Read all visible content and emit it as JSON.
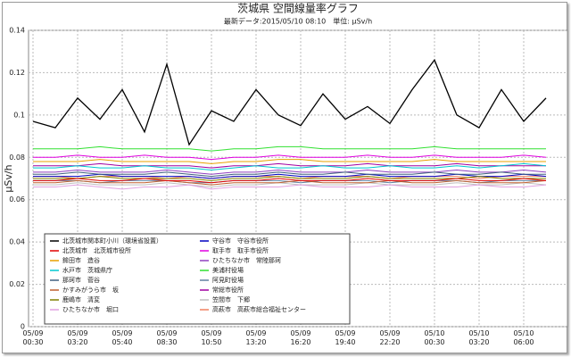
{
  "chart_data": {
    "type": "line",
    "title": "茨城県 空間線量率グラフ",
    "subtitle": "最新データ:2015/05/10 08:10　単位: μSv/h",
    "y_label": "μSv/h",
    "ylim": [
      0,
      0.14
    ],
    "yticks": [
      0,
      0.02,
      0.04,
      0.06,
      0.08,
      0.1,
      0.12,
      0.14
    ],
    "grid": true,
    "categories": [
      "05/09\n00:30",
      null,
      "05/09\n03:20",
      null,
      "05/09\n05:40",
      null,
      "05/09\n08:30",
      null,
      "05/09\n10:50",
      null,
      "05/09\n13:20",
      null,
      "05/09\n16:20",
      null,
      "05/09\n19:40",
      null,
      "05/09\n22:20",
      null,
      "05/10\n00:30",
      null,
      "05/10\n03:20",
      null,
      "05/10\n06:00",
      null
    ],
    "series": [
      {
        "name": "北茨城市関本町小川（環境省設置）",
        "color": "#000000",
        "values": [
          0.097,
          0.094,
          0.108,
          0.098,
          0.112,
          0.092,
          0.124,
          0.086,
          0.102,
          0.097,
          0.112,
          0.1,
          0.095,
          0.11,
          0.098,
          0.104,
          0.096,
          0.112,
          0.126,
          0.1,
          0.094,
          0.112,
          0.097,
          0.108
        ]
      },
      {
        "name": "北茨城市　北茨城市役所",
        "color": "#e00000",
        "values": [
          0.069,
          0.069,
          0.07,
          0.069,
          0.069,
          0.07,
          0.069,
          0.069,
          0.068,
          0.069,
          0.069,
          0.07,
          0.069,
          0.069,
          0.069,
          0.07,
          0.069,
          0.069,
          0.069,
          0.07,
          0.069,
          0.069,
          0.07,
          0.069
        ]
      },
      {
        "name": "鉾田市　造谷",
        "color": "#e8a000",
        "values": [
          0.078,
          0.078,
          0.078,
          0.079,
          0.078,
          0.078,
          0.078,
          0.078,
          0.077,
          0.078,
          0.078,
          0.079,
          0.079,
          0.078,
          0.078,
          0.078,
          0.078,
          0.078,
          0.079,
          0.078,
          0.078,
          0.078,
          0.078,
          0.078
        ]
      },
      {
        "name": "水戸市　茨城県庁",
        "color": "#00c8d0",
        "values": [
          0.075,
          0.075,
          0.076,
          0.075,
          0.075,
          0.076,
          0.075,
          0.075,
          0.074,
          0.075,
          0.076,
          0.075,
          0.075,
          0.076,
          0.075,
          0.075,
          0.076,
          0.075,
          0.075,
          0.076,
          0.075,
          0.076,
          0.077,
          0.076
        ]
      },
      {
        "name": "那珂市　菅谷",
        "color": "#406080",
        "values": [
          0.072,
          0.072,
          0.073,
          0.072,
          0.072,
          0.072,
          0.073,
          0.072,
          0.071,
          0.072,
          0.072,
          0.073,
          0.072,
          0.072,
          0.073,
          0.072,
          0.072,
          0.072,
          0.073,
          0.072,
          0.072,
          0.073,
          0.072,
          0.072
        ]
      },
      {
        "name": "かすみがうら市　坂",
        "color": "#c06030",
        "values": [
          0.068,
          0.068,
          0.069,
          0.068,
          0.068,
          0.068,
          0.069,
          0.068,
          0.067,
          0.068,
          0.068,
          0.068,
          0.069,
          0.068,
          0.068,
          0.068,
          0.069,
          0.068,
          0.068,
          0.069,
          0.068,
          0.068,
          0.068,
          0.069
        ]
      },
      {
        "name": "鹿嶋市　清変",
        "color": "#808000",
        "values": [
          0.07,
          0.07,
          0.07,
          0.071,
          0.07,
          0.07,
          0.07,
          0.07,
          0.069,
          0.07,
          0.07,
          0.071,
          0.07,
          0.07,
          0.07,
          0.071,
          0.07,
          0.07,
          0.07,
          0.07,
          0.071,
          0.07,
          0.07,
          0.07
        ]
      },
      {
        "name": "ひたちなか市　堀口",
        "color": "#e0a0e0",
        "values": [
          0.066,
          0.066,
          0.067,
          0.066,
          0.065,
          0.066,
          0.066,
          0.067,
          0.065,
          0.066,
          0.066,
          0.066,
          0.067,
          0.066,
          0.066,
          0.066,
          0.067,
          0.066,
          0.066,
          0.066,
          0.067,
          0.066,
          0.066,
          0.067
        ]
      },
      {
        "name": "守谷市　守谷市役所",
        "color": "#0000c0",
        "values": [
          0.071,
          0.071,
          0.071,
          0.072,
          0.071,
          0.071,
          0.071,
          0.071,
          0.07,
          0.071,
          0.071,
          0.072,
          0.071,
          0.071,
          0.071,
          0.072,
          0.071,
          0.071,
          0.071,
          0.072,
          0.071,
          0.071,
          0.072,
          0.071
        ]
      },
      {
        "name": "取手市　取手市役所",
        "color": "#e000e0",
        "values": [
          0.08,
          0.08,
          0.081,
          0.08,
          0.08,
          0.081,
          0.08,
          0.08,
          0.079,
          0.08,
          0.08,
          0.081,
          0.08,
          0.08,
          0.08,
          0.081,
          0.08,
          0.08,
          0.081,
          0.08,
          0.08,
          0.08,
          0.081,
          0.08
        ]
      },
      {
        "name": "ひたちなか市　常陸那珂",
        "color": "#9040c0",
        "values": [
          0.073,
          0.073,
          0.074,
          0.073,
          0.073,
          0.073,
          0.074,
          0.073,
          0.072,
          0.073,
          0.073,
          0.074,
          0.073,
          0.073,
          0.073,
          0.074,
          0.073,
          0.073,
          0.073,
          0.074,
          0.073,
          0.073,
          0.074,
          0.073
        ]
      },
      {
        "name": "美浦村役場",
        "color": "#30e030",
        "values": [
          0.084,
          0.084,
          0.084,
          0.085,
          0.084,
          0.084,
          0.084,
          0.084,
          0.083,
          0.084,
          0.084,
          0.085,
          0.085,
          0.084,
          0.084,
          0.084,
          0.084,
          0.084,
          0.085,
          0.084,
          0.084,
          0.084,
          0.084,
          0.084
        ]
      },
      {
        "name": "阿見町役場",
        "color": "#6080a0",
        "values": [
          0.069,
          0.069,
          0.069,
          0.068,
          0.069,
          0.069,
          0.069,
          0.068,
          0.068,
          0.069,
          0.069,
          0.069,
          0.068,
          0.069,
          0.069,
          0.069,
          0.068,
          0.069,
          0.069,
          0.069,
          0.068,
          0.069,
          0.069,
          0.069
        ]
      },
      {
        "name": "常総市役所",
        "color": "#a000a0",
        "values": [
          0.076,
          0.076,
          0.076,
          0.077,
          0.076,
          0.076,
          0.076,
          0.076,
          0.075,
          0.076,
          0.076,
          0.077,
          0.076,
          0.076,
          0.076,
          0.077,
          0.076,
          0.076,
          0.076,
          0.077,
          0.076,
          0.076,
          0.076,
          0.076
        ]
      },
      {
        "name": "笠間市　下郷",
        "color": "#c0c0c0",
        "values": [
          0.067,
          0.067,
          0.068,
          0.067,
          0.067,
          0.067,
          0.068,
          0.067,
          0.066,
          0.067,
          0.067,
          0.068,
          0.067,
          0.067,
          0.067,
          0.068,
          0.067,
          0.067,
          0.067,
          0.068,
          0.067,
          0.067,
          0.068,
          0.067
        ]
      },
      {
        "name": "高萩市　高萩市総合福祉センター",
        "color": "#f08060",
        "values": [
          0.071,
          0.071,
          0.07,
          0.071,
          0.071,
          0.071,
          0.07,
          0.071,
          0.07,
          0.071,
          0.071,
          0.071,
          0.07,
          0.071,
          0.071,
          0.071,
          0.07,
          0.071,
          0.071,
          0.071,
          0.07,
          0.071,
          0.071,
          0.071
        ]
      }
    ]
  }
}
